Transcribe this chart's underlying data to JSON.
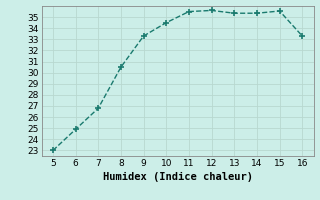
{
  "x": [
    5,
    6,
    7,
    8,
    9,
    10,
    11,
    12,
    13,
    14,
    15,
    16
  ],
  "y": [
    23,
    24.9,
    26.8,
    30.5,
    33.3,
    34.5,
    35.5,
    35.6,
    35.35,
    35.35,
    35.55,
    33.3
  ],
  "line_color": "#1a7a6e",
  "marker": "+",
  "marker_size": 4,
  "marker_linewidth": 1.2,
  "bg_color": "#cceee8",
  "grid_color_major": "#b8d8d0",
  "grid_color_minor": "#d4ece6",
  "xlabel": "Humidex (Indice chaleur)",
  "xlim": [
    4.5,
    16.5
  ],
  "ylim": [
    22.5,
    36.0
  ],
  "xticks": [
    5,
    6,
    7,
    8,
    9,
    10,
    11,
    12,
    13,
    14,
    15,
    16
  ],
  "yticks": [
    23,
    24,
    25,
    26,
    27,
    28,
    29,
    30,
    31,
    32,
    33,
    34,
    35
  ],
  "tick_fontsize": 6.5,
  "xlabel_fontsize": 7.5,
  "line_width": 1.0
}
